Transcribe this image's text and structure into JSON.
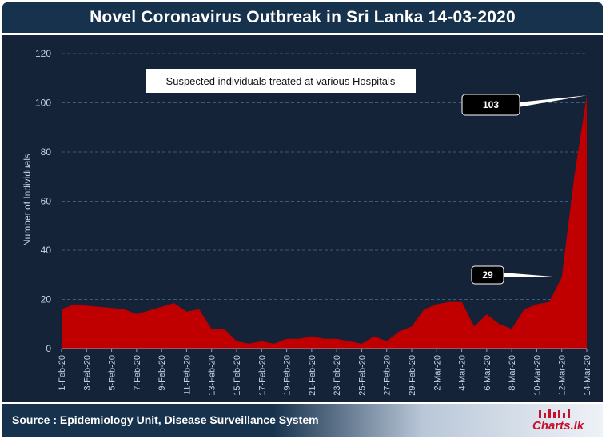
{
  "title": "Novel Coronavirus Outbreak in Sri Lanka 14-03-2020",
  "source": "Source : Epidemiology Unit, Disease Surveillance System",
  "logo_text": "Charts.lk",
  "colors": {
    "background": "#142338",
    "area": "#c00000",
    "title_bar": "#17324d",
    "grid": "#3b5a80"
  },
  "chart_data": {
    "type": "area",
    "title": "Suspected individuals treated at various Hospitals",
    "xlabel": "",
    "ylabel": "Number of Individuals",
    "ylim": [
      0,
      120
    ],
    "yticks": [
      0,
      20,
      40,
      60,
      80,
      100,
      120
    ],
    "grid": true,
    "x": [
      "1-Feb-20",
      "2-Feb-20",
      "3-Feb-20",
      "4-Feb-20",
      "5-Feb-20",
      "6-Feb-20",
      "7-Feb-20",
      "8-Feb-20",
      "9-Feb-20",
      "10-Feb-20",
      "11-Feb-20",
      "12-Feb-20",
      "13-Feb-20",
      "14-Feb-20",
      "15-Feb-20",
      "16-Feb-20",
      "17-Feb-20",
      "18-Feb-20",
      "19-Feb-20",
      "20-Feb-20",
      "21-Feb-20",
      "22-Feb-20",
      "23-Feb-20",
      "24-Feb-20",
      "25-Feb-20",
      "26-Feb-20",
      "27-Feb-20",
      "28-Feb-20",
      "29-Feb-20",
      "1-Mar-20",
      "2-Mar-20",
      "3-Mar-20",
      "4-Mar-20",
      "5-Mar-20",
      "6-Mar-20",
      "7-Mar-20",
      "8-Mar-20",
      "9-Mar-20",
      "10-Mar-20",
      "11-Mar-20",
      "12-Mar-20",
      "13-Mar-20",
      "14-Mar-20"
    ],
    "x_tick_labels": [
      "1-Feb-20",
      "3-Feb-20",
      "5-Feb-20",
      "7-Feb-20",
      "9-Feb-20",
      "11-Feb-20",
      "13-Feb-20",
      "15-Feb-20",
      "17-Feb-20",
      "19-Feb-20",
      "21-Feb-20",
      "23-Feb-20",
      "25-Feb-20",
      "27-Feb-20",
      "29-Feb-20",
      "2-Mar-20",
      "4-Mar-20",
      "6-Mar-20",
      "8-Mar-20",
      "10-Mar-20",
      "12-Mar-20",
      "14-Mar-20"
    ],
    "series": [
      {
        "name": "",
        "values": [
          16,
          18,
          17.5,
          17,
          16.5,
          16,
          14,
          15.5,
          17,
          18.5,
          15,
          16,
          8,
          8,
          3,
          2,
          3,
          2,
          4,
          4,
          5,
          4,
          4,
          3,
          2,
          5,
          3,
          7,
          9,
          16,
          18,
          19,
          19,
          9,
          14,
          10,
          8,
          16,
          18,
          19,
          29,
          70,
          103
        ]
      }
    ],
    "annotations": [
      {
        "text": "103",
        "x": "14-Mar-20",
        "y": 103
      },
      {
        "text": "29",
        "x": "12-Mar-20",
        "y": 29
      }
    ]
  }
}
